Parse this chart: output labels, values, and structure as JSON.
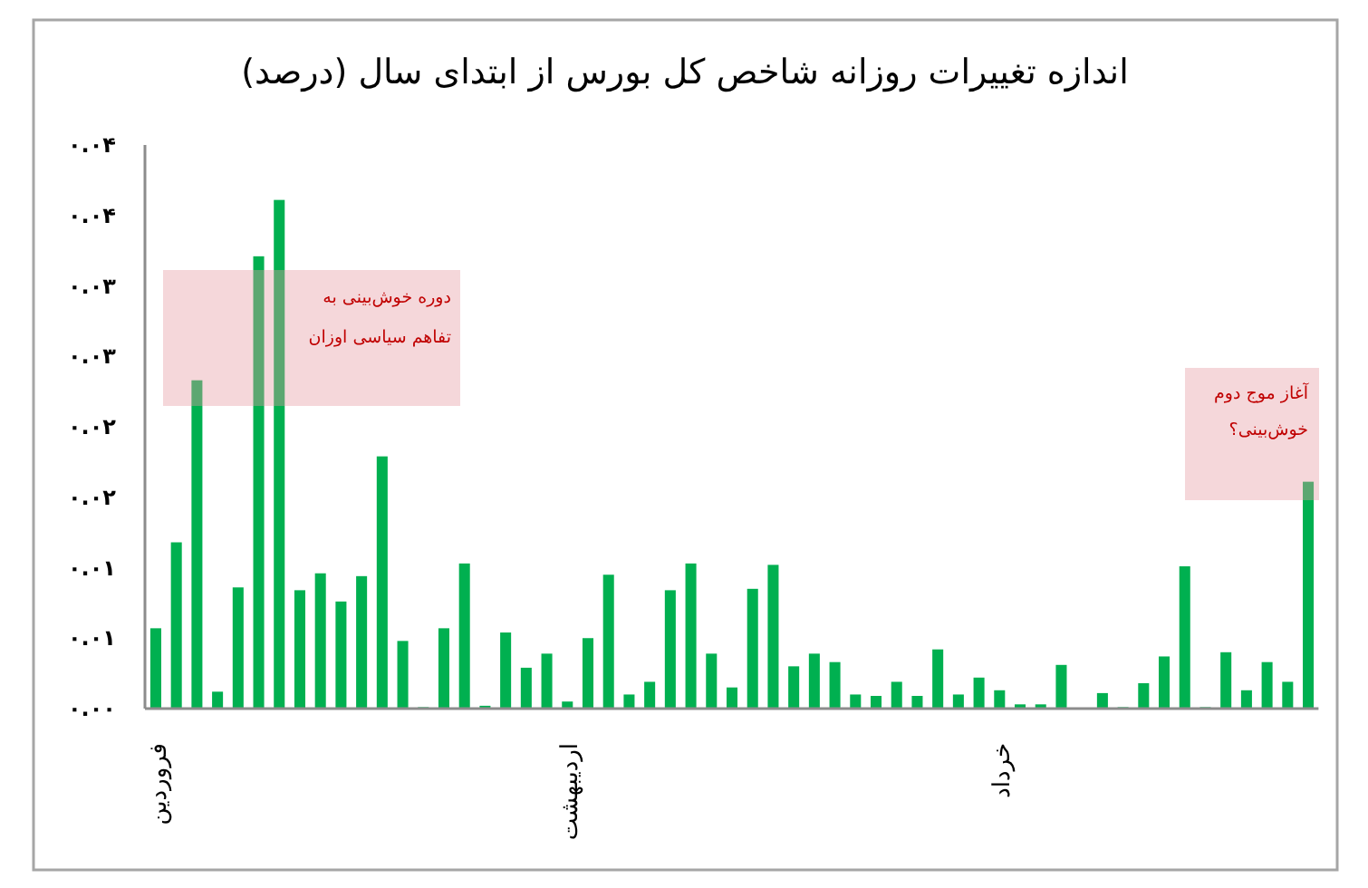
{
  "chart_data": {
    "type": "bar",
    "title": "اندازه تغییرات روزانه شاخص کل بورس از ابتدای سال (درصد)",
    "categories": [
      "فروردین",
      null,
      null,
      null,
      null,
      null,
      null,
      null,
      null,
      null,
      null,
      null,
      null,
      null,
      null,
      null,
      null,
      null,
      null,
      null,
      "اردیبهشت",
      null,
      null,
      null,
      null,
      null,
      null,
      null,
      null,
      null,
      null,
      null,
      null,
      null,
      null,
      null,
      null,
      null,
      null,
      null,
      null,
      "خرداد",
      null,
      null,
      null,
      null,
      null,
      null,
      null,
      null,
      null,
      null,
      null,
      null,
      null,
      null,
      null
    ],
    "values": [
      0.0057,
      0.0118,
      0.0233,
      0.0012,
      0.0086,
      0.0321,
      0.0361,
      0.0084,
      0.0096,
      0.0076,
      0.0094,
      0.0179,
      0.0048,
      0.0001,
      0.0057,
      0.0103,
      0.0002,
      0.0054,
      0.0029,
      0.0039,
      0.0005,
      0.005,
      0.0095,
      0.001,
      0.0019,
      0.0084,
      0.0103,
      0.0039,
      0.0015,
      0.0085,
      0.0102,
      0.003,
      0.0039,
      0.0033,
      0.001,
      0.0009,
      0.0019,
      0.0009,
      0.0042,
      0.001,
      0.0022,
      0.0013,
      0.0003,
      0.0003,
      0.0031,
      null,
      0.0011,
      0.0001,
      0.0018,
      0.0037,
      0.0101,
      0.0001,
      0.004,
      0.0013,
      0.0033,
      0.0019,
      0.0161
    ],
    "color": "#00b050",
    "ylim": [
      0,
      0.04
    ],
    "yticks": [
      {
        "value": 0,
        "label": "۰.۰۰"
      },
      {
        "value": 0.005,
        "label": "۰.۰۱"
      },
      {
        "value": 0.01,
        "label": "۰.۰۱"
      },
      {
        "value": 0.015,
        "label": "۰.۰۲"
      },
      {
        "value": 0.02,
        "label": "۰.۰۲"
      },
      {
        "value": 0.025,
        "label": "۰.۰۳"
      },
      {
        "value": 0.03,
        "label": "۰.۰۳"
      },
      {
        "value": 0.035,
        "label": "۰.۰۴"
      },
      {
        "value": 0.04,
        "label": "۰.۰۴"
      }
    ],
    "annotations": [
      "دوره خوش‌بینی به\nتفاهم سیاسی اوزان",
      "آغاز موج دوم\nخوش‌بینی؟"
    ]
  }
}
